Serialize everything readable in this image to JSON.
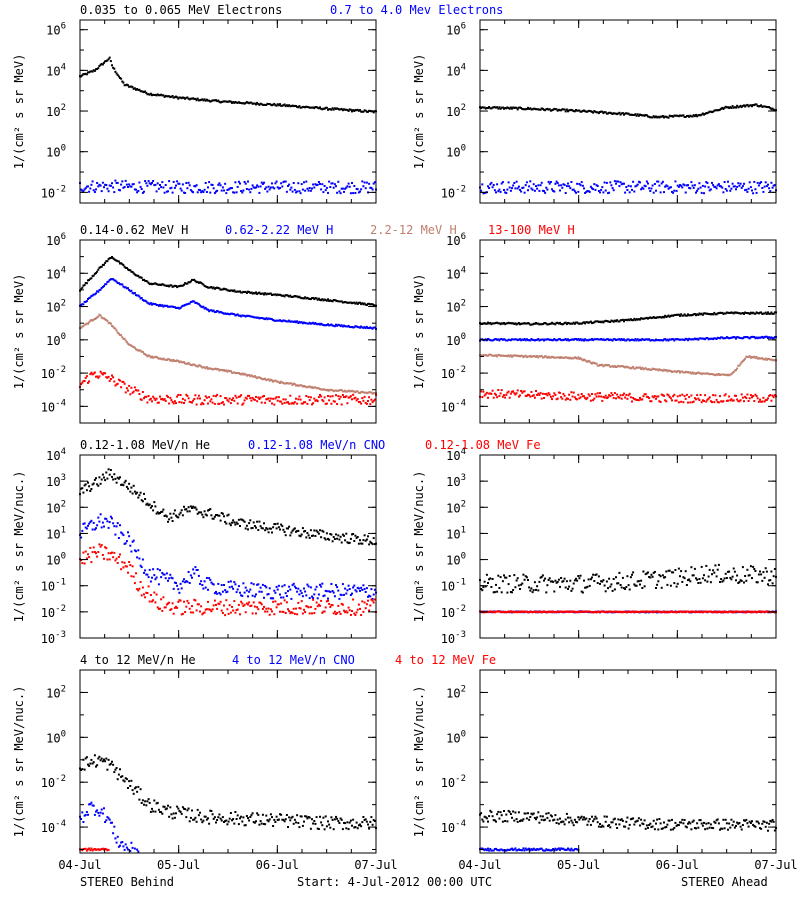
{
  "figure": {
    "footer_left": "STEREO Behind",
    "footer_center": "Start:  4-Jul-2012 00:00 UTC",
    "footer_right": "STEREO Ahead"
  },
  "chart_data": [
    {
      "type": "scatter",
      "instrument": "STEREO Behind",
      "row": 1,
      "legend": [
        "0.035 to 0.065 MeV Electrons",
        "0.7 to 4.0 Mev Electrons"
      ],
      "legend_colors": [
        "#000000",
        "#0000ff"
      ],
      "ylabel": "1/(cm² s sr MeV)",
      "log_y": true,
      "ylim": [
        0.003,
        3000000
      ],
      "yticks": [
        {
          "v": 1000000,
          "m": "10",
          "e": "6"
        },
        {
          "v": 10000,
          "m": "10",
          "e": "4"
        },
        {
          "v": 100,
          "m": "10",
          "e": "2"
        },
        {
          "v": 1,
          "m": "10",
          "e": "0"
        },
        {
          "v": 0.01,
          "m": "10",
          "e": "-2"
        }
      ],
      "xlim": [
        0,
        3
      ],
      "xticks": [
        "04-Jul",
        "05-Jul",
        "06-Jul",
        "07-Jul"
      ],
      "xunit": "days from 4-Jul-2012 00:00 UTC",
      "series": [
        {
          "color": "#000000",
          "x": [
            0,
            0.15,
            0.3,
            0.33,
            0.45,
            0.7,
            1.0,
            1.4,
            2.0,
            2.5,
            3.0
          ],
          "y": [
            5000,
            10000,
            40000,
            15000,
            2000,
            700,
            450,
            300,
            200,
            130,
            90
          ]
        },
        {
          "color": "#0000ff",
          "x": [
            0,
            1.0,
            2.0,
            3.0
          ],
          "y": [
            0.02,
            0.018,
            0.018,
            0.018
          ],
          "noise": 0.3
        }
      ]
    },
    {
      "type": "scatter",
      "instrument": "STEREO Ahead",
      "row": 1,
      "legend": [],
      "legend_colors": [],
      "ylabel": "1/(cm² s sr MeV)",
      "log_y": true,
      "ylim": [
        0.003,
        3000000
      ],
      "yticks": [
        {
          "v": 1000000,
          "m": "10",
          "e": "6"
        },
        {
          "v": 10000,
          "m": "10",
          "e": "4"
        },
        {
          "v": 100,
          "m": "10",
          "e": "2"
        },
        {
          "v": 1,
          "m": "10",
          "e": "0"
        },
        {
          "v": 0.01,
          "m": "10",
          "e": "-2"
        }
      ],
      "xlim": [
        0,
        3
      ],
      "xticks": [
        "04-Jul",
        "05-Jul",
        "06-Jul",
        "07-Jul"
      ],
      "xunit": "days from 4-Jul-2012 00:00 UTC",
      "series": [
        {
          "color": "#000000",
          "x": [
            0,
            0.5,
            1.0,
            1.5,
            1.8,
            2.2,
            2.5,
            2.8,
            3.0
          ],
          "y": [
            150,
            130,
            100,
            70,
            50,
            60,
            150,
            200,
            120
          ]
        },
        {
          "color": "#0000ff",
          "x": [
            0,
            1.0,
            2.0,
            3.0
          ],
          "y": [
            0.018,
            0.018,
            0.018,
            0.018
          ],
          "noise": 0.3
        }
      ]
    },
    {
      "type": "scatter",
      "instrument": "STEREO Behind",
      "row": 2,
      "legend": [
        "0.14-0.62 MeV H",
        "0.62-2.22 MeV H",
        "2.2-12 MeV H",
        "13-100 MeV H"
      ],
      "legend_colors": [
        "#000000",
        "#0000ff",
        "#c08070",
        "#ff0000"
      ],
      "ylabel": "1/(cm² s sr MeV)",
      "log_y": true,
      "ylim": [
        1e-05,
        1000000
      ],
      "yticks": [
        {
          "v": 1000000,
          "m": "10",
          "e": "6"
        },
        {
          "v": 10000,
          "m": "10",
          "e": "4"
        },
        {
          "v": 100,
          "m": "10",
          "e": "2"
        },
        {
          "v": 1,
          "m": "10",
          "e": "0"
        },
        {
          "v": 0.01,
          "m": "10",
          "e": "-2"
        },
        {
          "v": 0.0001,
          "m": "10",
          "e": "-4"
        }
      ],
      "xlim": [
        0,
        3
      ],
      "xticks": [
        "04-Jul",
        "05-Jul",
        "06-Jul",
        "07-Jul"
      ],
      "xunit": "days from 4-Jul-2012 00:00 UTC",
      "series": [
        {
          "color": "#000000",
          "x": [
            0,
            0.2,
            0.32,
            0.5,
            0.7,
            1.0,
            1.15,
            1.3,
            1.6,
            2.0,
            2.5,
            3.0
          ],
          "y": [
            1000,
            20000,
            100000,
            15000,
            2500,
            1500,
            4000,
            1500,
            800,
            500,
            250,
            120
          ]
        },
        {
          "color": "#0000ff",
          "x": [
            0,
            0.2,
            0.32,
            0.5,
            0.7,
            1.0,
            1.15,
            1.3,
            1.6,
            2.0,
            2.5,
            3.0
          ],
          "y": [
            100,
            1000,
            5000,
            1000,
            150,
            80,
            200,
            60,
            30,
            15,
            8,
            5
          ]
        },
        {
          "color": "#c08070",
          "x": [
            0,
            0.2,
            0.3,
            0.5,
            0.7,
            1.0,
            1.3,
            1.6,
            2.0,
            2.5,
            3.0
          ],
          "y": [
            5,
            30,
            10,
            0.5,
            0.1,
            0.05,
            0.02,
            0.01,
            0.003,
            0.001,
            0.0006
          ]
        },
        {
          "color": "#ff0000",
          "x": [
            0,
            0.15,
            0.3,
            0.5,
            0.7,
            1.0,
            2.0,
            3.0
          ],
          "y": [
            0.002,
            0.01,
            0.005,
            0.001,
            0.0003,
            0.00025,
            0.00025,
            0.00025
          ],
          "noise": 0.3
        }
      ]
    },
    {
      "type": "scatter",
      "instrument": "STEREO Ahead",
      "row": 2,
      "legend": [],
      "legend_colors": [],
      "ylabel": "1/(cm² s sr MeV)",
      "log_y": true,
      "ylim": [
        1e-05,
        1000000
      ],
      "yticks": [
        {
          "v": 1000000,
          "m": "10",
          "e": "6"
        },
        {
          "v": 10000,
          "m": "10",
          "e": "4"
        },
        {
          "v": 100,
          "m": "10",
          "e": "2"
        },
        {
          "v": 1,
          "m": "10",
          "e": "0"
        },
        {
          "v": 0.01,
          "m": "10",
          "e": "-2"
        },
        {
          "v": 0.0001,
          "m": "10",
          "e": "-4"
        }
      ],
      "xlim": [
        0,
        3
      ],
      "xticks": [
        "04-Jul",
        "05-Jul",
        "06-Jul",
        "07-Jul"
      ],
      "xunit": "days from 4-Jul-2012 00:00 UTC",
      "series": [
        {
          "color": "#000000",
          "x": [
            0,
            0.5,
            1.0,
            1.5,
            2.0,
            2.5,
            2.8,
            3.0
          ],
          "y": [
            10,
            9,
            10,
            15,
            30,
            40,
            40,
            40
          ]
        },
        {
          "color": "#0000ff",
          "x": [
            0,
            1.0,
            2.0,
            2.5,
            3.0
          ],
          "y": [
            1,
            1,
            1,
            1.3,
            1.4
          ]
        },
        {
          "color": "#c08070",
          "x": [
            0,
            0.5,
            1.0,
            1.2,
            1.6,
            2.0,
            2.4,
            2.55,
            2.7,
            3.0
          ],
          "y": [
            0.12,
            0.1,
            0.08,
            0.03,
            0.02,
            0.012,
            0.008,
            0.008,
            0.1,
            0.06
          ]
        },
        {
          "color": "#ff0000",
          "x": [
            0,
            1.0,
            2.0,
            3.0
          ],
          "y": [
            0.0006,
            0.0004,
            0.0003,
            0.0003
          ],
          "noise": 0.25
        }
      ]
    },
    {
      "type": "scatter",
      "instrument": "STEREO Behind",
      "row": 3,
      "legend": [
        "0.12-1.08 MeV/n He",
        "0.12-1.08 MeV/n CNO",
        "0.12-1.08 MeV Fe"
      ],
      "legend_colors": [
        "#000000",
        "#0000ff",
        "#ff0000"
      ],
      "ylabel": "1/(cm² s sr MeV/nuc.)",
      "log_y": true,
      "ylim": [
        0.001,
        10000
      ],
      "yticks": [
        {
          "v": 10000,
          "m": "10",
          "e": "4"
        },
        {
          "v": 1000,
          "m": "10",
          "e": "3"
        },
        {
          "v": 100,
          "m": "10",
          "e": "2"
        },
        {
          "v": 10,
          "m": "10",
          "e": "1"
        },
        {
          "v": 1,
          "m": "10",
          "e": "0"
        },
        {
          "v": 0.1,
          "m": "10",
          "e": "-1"
        },
        {
          "v": 0.01,
          "m": "10",
          "e": "-2"
        },
        {
          "v": 0.001,
          "m": "10",
          "e": "-3"
        }
      ],
      "xlim": [
        0,
        3
      ],
      "xticks": [
        "04-Jul",
        "05-Jul",
        "06-Jul",
        "07-Jul"
      ],
      "xunit": "days from 4-Jul-2012 00:00 UTC",
      "series": [
        {
          "color": "#000000",
          "x": [
            0,
            0.2,
            0.3,
            0.5,
            0.7,
            0.9,
            1.1,
            1.3,
            1.6,
            2.0,
            2.5,
            3.0
          ],
          "y": [
            400,
            1000,
            2000,
            600,
            150,
            40,
            80,
            60,
            25,
            15,
            8,
            5
          ],
          "noise": 0.2
        },
        {
          "color": "#0000ff",
          "x": [
            0,
            0.2,
            0.3,
            0.5,
            0.7,
            1.0,
            1.15,
            1.3,
            1.6,
            2.0,
            3.0
          ],
          "y": [
            10,
            30,
            25,
            5,
            0.3,
            0.1,
            0.3,
            0.1,
            0.07,
            0.06,
            0.06
          ],
          "noise": 0.3
        },
        {
          "color": "#ff0000",
          "x": [
            0,
            0.2,
            0.3,
            0.5,
            0.6,
            0.7,
            0.8,
            1.0,
            3.0
          ],
          "y": [
            1,
            2,
            1.5,
            0.5,
            0.1,
            0.05,
            0.02,
            0.015,
            0.015
          ],
          "noise": 0.3
        }
      ]
    },
    {
      "type": "scatter",
      "instrument": "STEREO Ahead",
      "row": 3,
      "legend": [],
      "legend_colors": [],
      "ylabel": "1/(cm² s sr MeV/nuc.)",
      "log_y": true,
      "ylim": [
        0.001,
        10000
      ],
      "yticks": [
        {
          "v": 10000,
          "m": "10",
          "e": "4"
        },
        {
          "v": 1000,
          "m": "10",
          "e": "3"
        },
        {
          "v": 100,
          "m": "10",
          "e": "2"
        },
        {
          "v": 10,
          "m": "10",
          "e": "1"
        },
        {
          "v": 1,
          "m": "10",
          "e": "0"
        },
        {
          "v": 0.1,
          "m": "10",
          "e": "-1"
        },
        {
          "v": 0.01,
          "m": "10",
          "e": "-2"
        },
        {
          "v": 0.001,
          "m": "10",
          "e": "-3"
        }
      ],
      "xlim": [
        0,
        3
      ],
      "xticks": [
        "04-Jul",
        "05-Jul",
        "06-Jul",
        "07-Jul"
      ],
      "xunit": "days from 4-Jul-2012 00:00 UTC",
      "series": [
        {
          "color": "#000000",
          "x": [
            0,
            1.0,
            1.5,
            2.0,
            2.3,
            2.6,
            3.0
          ],
          "y": [
            0.12,
            0.12,
            0.15,
            0.2,
            0.3,
            0.25,
            0.25
          ],
          "noise": 0.35
        },
        {
          "color": "#0000ff",
          "x": [
            0,
            1.5,
            3.0
          ],
          "y": [
            0.01,
            0.01,
            0.01
          ],
          "noise": 0.02
        },
        {
          "color": "#ff0000",
          "x": [
            0,
            1.5,
            3.0
          ],
          "y": [
            0.01,
            0.01,
            0.01
          ],
          "noise": 0.02
        }
      ]
    },
    {
      "type": "scatter",
      "instrument": "STEREO Behind",
      "row": 4,
      "legend": [
        "4 to 12 MeV/n He",
        "4 to 12 MeV/n CNO",
        "4 to 12 MeV Fe"
      ],
      "legend_colors": [
        "#000000",
        "#0000ff",
        "#ff0000"
      ],
      "ylabel": "1/(cm² s sr MeV/nuc.)",
      "log_y": true,
      "ylim": [
        7e-06,
        1000
      ],
      "yticks": [
        {
          "v": 100,
          "m": "10",
          "e": "2"
        },
        {
          "v": 1,
          "m": "10",
          "e": "0"
        },
        {
          "v": 0.01,
          "m": "10",
          "e": "-2"
        },
        {
          "v": 0.0001,
          "m": "10",
          "e": "-4"
        }
      ],
      "xlim": [
        0,
        3
      ],
      "xticks": [
        "04-Jul",
        "05-Jul",
        "06-Jul",
        "07-Jul"
      ],
      "xunit": "days from 4-Jul-2012 00:00 UTC",
      "series": [
        {
          "color": "#000000",
          "x": [
            0,
            0.2,
            0.3,
            0.5,
            0.7,
            0.9,
            1.2,
            1.5,
            2.0,
            2.5,
            3.0
          ],
          "y": [
            0.06,
            0.1,
            0.06,
            0.008,
            0.001,
            0.0005,
            0.0003,
            0.00025,
            0.0002,
            0.00015,
            0.00015
          ],
          "noise": 0.3
        },
        {
          "color": "#0000ff",
          "x": [
            0,
            0.1,
            0.2,
            0.3,
            0.35,
            0.4,
            0.5,
            0.6
          ],
          "y": [
            0.0002,
            0.0008,
            0.0006,
            0.0002,
            5e-05,
            2e-05,
            1e-05,
            1e-05
          ],
          "noise": 0.3
        },
        {
          "color": "#ff0000",
          "x": [
            0,
            0.1,
            0.2,
            0.3
          ],
          "y": [
            1e-05,
            1e-05,
            1e-05,
            1e-05
          ],
          "noise": 0.05
        }
      ]
    },
    {
      "type": "scatter",
      "instrument": "STEREO Ahead",
      "row": 4,
      "legend": [],
      "legend_colors": [],
      "ylabel": "1/(cm² s sr MeV/nuc.)",
      "log_y": true,
      "ylim": [
        7e-06,
        1000
      ],
      "yticks": [
        {
          "v": 100,
          "m": "10",
          "e": "2"
        },
        {
          "v": 1,
          "m": "10",
          "e": "0"
        },
        {
          "v": 0.01,
          "m": "10",
          "e": "-2"
        },
        {
          "v": 0.0001,
          "m": "10",
          "e": "-4"
        }
      ],
      "xlim": [
        0,
        3
      ],
      "xticks": [
        "04-Jul",
        "05-Jul",
        "06-Jul",
        "07-Jul"
      ],
      "xunit": "days from 4-Jul-2012 00:00 UTC",
      "series": [
        {
          "color": "#000000",
          "x": [
            0,
            0.5,
            1.0,
            1.5,
            2.0,
            2.5,
            3.0
          ],
          "y": [
            0.0003,
            0.0003,
            0.0002,
            0.00015,
            0.00013,
            0.00013,
            0.00012
          ],
          "noise": 0.25
        },
        {
          "color": "#0000ff",
          "x": [
            0,
            0.3,
            1.0
          ],
          "y": [
            1e-05,
            1e-05,
            1e-05
          ],
          "noise": 0.05
        }
      ]
    }
  ]
}
